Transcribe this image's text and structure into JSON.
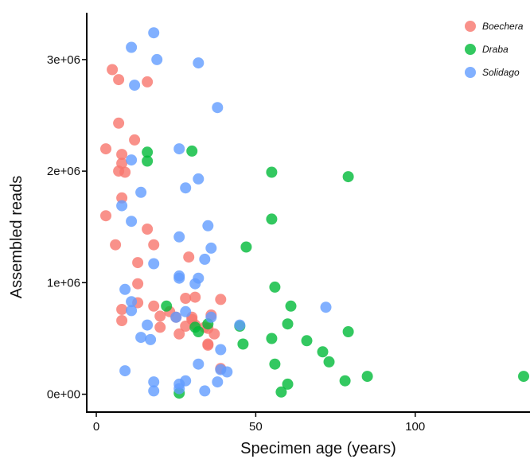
{
  "chart_data": {
    "type": "scatter",
    "xlabel": "Specimen age (years)",
    "ylabel": "Assembled reads",
    "xlim": [
      -3,
      136
    ],
    "ylim": [
      -160000,
      3420000
    ],
    "x_ticks": [
      0,
      50,
      100
    ],
    "x_tick_labels": [
      "0",
      "50",
      "100"
    ],
    "y_ticks": [
      0,
      1000000,
      2000000,
      3000000
    ],
    "y_tick_labels": [
      "0e+00",
      "1e+06",
      "2e+06",
      "3e+06"
    ],
    "grid": false,
    "legend_position": "top-right",
    "series": [
      {
        "name": "Boechera",
        "color": "#F8766D",
        "points": [
          [
            5,
            2910000
          ],
          [
            7,
            2820000
          ],
          [
            16,
            2800000
          ],
          [
            7,
            2430000
          ],
          [
            12,
            2280000
          ],
          [
            3,
            2200000
          ],
          [
            8,
            2150000
          ],
          [
            8,
            2070000
          ],
          [
            7,
            2000000
          ],
          [
            9,
            1990000
          ],
          [
            8,
            1760000
          ],
          [
            3,
            1600000
          ],
          [
            16,
            1480000
          ],
          [
            6,
            1340000
          ],
          [
            18,
            1340000
          ],
          [
            29,
            1230000
          ],
          [
            13,
            1180000
          ],
          [
            13,
            990000
          ],
          [
            36,
            710000
          ],
          [
            39,
            850000
          ],
          [
            28,
            860000
          ],
          [
            31,
            870000
          ],
          [
            13,
            820000
          ],
          [
            8,
            760000
          ],
          [
            18,
            790000
          ],
          [
            23,
            740000
          ],
          [
            20,
            700000
          ],
          [
            30,
            690000
          ],
          [
            30,
            670000
          ],
          [
            25,
            690000
          ],
          [
            8,
            660000
          ],
          [
            20,
            600000
          ],
          [
            28,
            610000
          ],
          [
            31,
            620000
          ],
          [
            34,
            600000
          ],
          [
            35,
            590000
          ],
          [
            26,
            540000
          ],
          [
            37,
            540000
          ],
          [
            35,
            450000
          ],
          [
            35,
            440000
          ],
          [
            39,
            230000
          ]
        ]
      },
      {
        "name": "Draba",
        "color": "#00BA38",
        "points": [
          [
            16,
            2170000
          ],
          [
            30,
            2180000
          ],
          [
            16,
            2090000
          ],
          [
            55,
            1990000
          ],
          [
            79,
            1950000
          ],
          [
            55,
            1570000
          ],
          [
            47,
            1320000
          ],
          [
            56,
            960000
          ],
          [
            61,
            790000
          ],
          [
            22,
            790000
          ],
          [
            60,
            630000
          ],
          [
            79,
            560000
          ],
          [
            31,
            600000
          ],
          [
            35,
            630000
          ],
          [
            45,
            610000
          ],
          [
            32,
            560000
          ],
          [
            55,
            500000
          ],
          [
            66,
            480000
          ],
          [
            46,
            450000
          ],
          [
            71,
            380000
          ],
          [
            73,
            290000
          ],
          [
            56,
            270000
          ],
          [
            85,
            160000
          ],
          [
            78,
            120000
          ],
          [
            60,
            90000
          ],
          [
            58,
            20000
          ],
          [
            134,
            160000
          ],
          [
            26,
            10000
          ]
        ]
      },
      {
        "name": "Solidago",
        "color": "#619CFF",
        "points": [
          [
            18,
            3240000
          ],
          [
            11,
            3110000
          ],
          [
            19,
            3000000
          ],
          [
            32,
            2970000
          ],
          [
            12,
            2770000
          ],
          [
            38,
            2570000
          ],
          [
            26,
            2200000
          ],
          [
            11,
            2100000
          ],
          [
            32,
            1930000
          ],
          [
            28,
            1850000
          ],
          [
            14,
            1810000
          ],
          [
            8,
            1690000
          ],
          [
            11,
            1550000
          ],
          [
            35,
            1510000
          ],
          [
            26,
            1410000
          ],
          [
            36,
            1310000
          ],
          [
            34,
            1210000
          ],
          [
            18,
            1170000
          ],
          [
            26,
            1060000
          ],
          [
            26,
            1040000
          ],
          [
            32,
            1040000
          ],
          [
            31,
            990000
          ],
          [
            9,
            940000
          ],
          [
            11,
            830000
          ],
          [
            72,
            780000
          ],
          [
            11,
            750000
          ],
          [
            28,
            740000
          ],
          [
            36,
            690000
          ],
          [
            25,
            690000
          ],
          [
            45,
            620000
          ],
          [
            16,
            620000
          ],
          [
            14,
            510000
          ],
          [
            17,
            490000
          ],
          [
            39,
            400000
          ],
          [
            32,
            270000
          ],
          [
            39,
            220000
          ],
          [
            41,
            200000
          ],
          [
            9,
            210000
          ],
          [
            28,
            120000
          ],
          [
            38,
            110000
          ],
          [
            18,
            110000
          ],
          [
            26,
            90000
          ],
          [
            26,
            50000
          ],
          [
            34,
            30000
          ],
          [
            18,
            30000
          ]
        ]
      }
    ]
  }
}
